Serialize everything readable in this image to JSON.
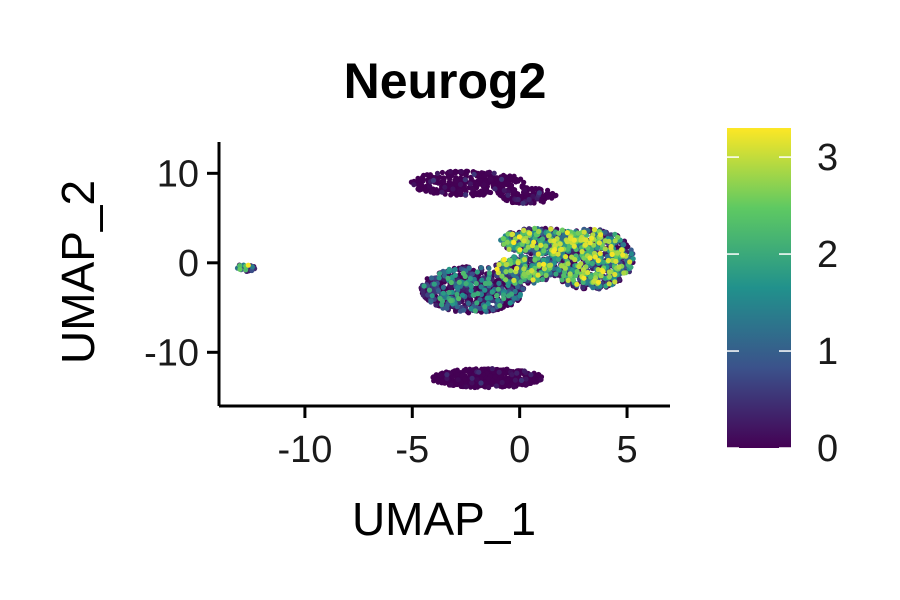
{
  "chart_data": {
    "type": "scatter",
    "title": "Neurog2",
    "xlabel": "UMAP_1",
    "ylabel": "UMAP_2",
    "xlim": [
      -14,
      7
    ],
    "ylim": [
      -16,
      13.5
    ],
    "xticks": [
      -10,
      -5,
      0,
      5
    ],
    "xtick_labels": [
      "-10",
      "-5",
      "0",
      "5"
    ],
    "yticks": [
      -10,
      0,
      10
    ],
    "ytick_labels": [
      "-10",
      "0",
      "10"
    ],
    "grid": false,
    "legend": "right",
    "colorbar": {
      "min": 0,
      "max": 3.3,
      "ticks": [
        0,
        1,
        2,
        3
      ],
      "tick_labels": [
        "0",
        "1",
        "2",
        "3"
      ],
      "colormap": "viridis",
      "colors": [
        "#440154",
        "#3b528b",
        "#21918c",
        "#5ec962",
        "#fde725"
      ]
    },
    "clusters": [
      {
        "cx": -12.7,
        "cy": -0.6,
        "rx": 0.5,
        "ry": 0.4,
        "rot": -35,
        "n": 25,
        "expr_mean": 0.9
      },
      {
        "cx": -2.4,
        "cy": 8.9,
        "rx": 2.7,
        "ry": 1.4,
        "rot": 0,
        "n": 350,
        "expr_mean": 0.05
      },
      {
        "cx": 0.3,
        "cy": 7.5,
        "rx": 1.4,
        "ry": 0.9,
        "rot": 0,
        "n": 120,
        "expr_mean": 0.08
      },
      {
        "cx": -2.2,
        "cy": -3.0,
        "rx": 2.4,
        "ry": 2.6,
        "rot": 0,
        "n": 700,
        "expr_mean": 0.55
      },
      {
        "cx": 0.2,
        "cy": -0.8,
        "rx": 1.4,
        "ry": 1.6,
        "rot": 0,
        "n": 300,
        "expr_mean": 1.0
      },
      {
        "cx": 3.3,
        "cy": 0.4,
        "rx": 2.0,
        "ry": 3.4,
        "rot": 0,
        "n": 850,
        "expr_mean": 0.85
      },
      {
        "cx": 1.0,
        "cy": 2.4,
        "rx": 1.9,
        "ry": 1.5,
        "rot": 0,
        "n": 450,
        "expr_mean": 1.1
      },
      {
        "cx": -1.5,
        "cy": -12.9,
        "rx": 2.6,
        "ry": 1.1,
        "rot": 0,
        "n": 420,
        "expr_mean": 0.02
      }
    ]
  }
}
